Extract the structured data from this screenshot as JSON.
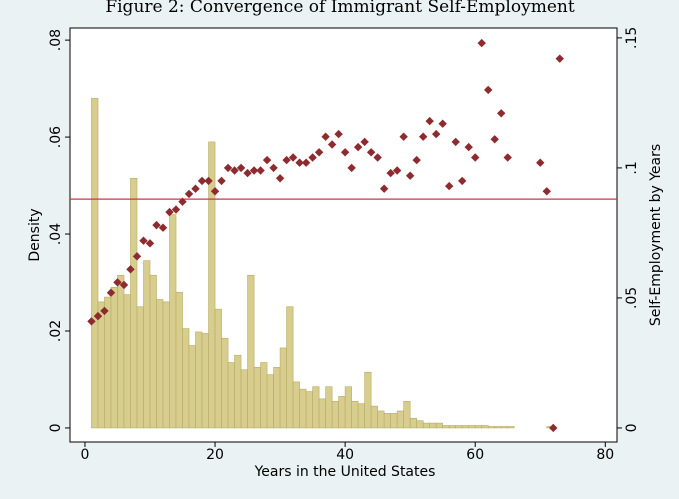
{
  "chart_data": {
    "type": "histogram",
    "title": "Figure 2: Convergence of Immigrant Self-Employment",
    "xlabel": "Years in the United States",
    "ylabel": "Density",
    "y2label": "Self-Employment by Years",
    "bins": [
      1,
      2,
      3,
      4,
      5,
      6,
      7,
      8,
      9,
      10,
      11,
      12,
      13,
      14,
      15,
      16,
      17,
      18,
      19,
      20,
      21,
      22,
      23,
      24,
      25,
      26,
      27,
      28,
      29,
      30,
      31,
      32,
      33,
      34,
      35,
      36,
      37,
      38,
      39,
      40,
      41,
      42,
      43,
      44,
      45,
      46,
      47,
      48,
      49,
      50,
      51,
      52,
      53,
      54,
      55,
      56,
      57,
      58,
      59,
      60,
      61,
      62,
      63,
      64,
      65,
      66,
      67,
      68,
      69,
      70,
      71,
      72,
      73
    ],
    "values": [
      0.068,
      0.026,
      0.027,
      0.029,
      0.0315,
      0.0275,
      0.0515,
      0.025,
      0.0345,
      0.0315,
      0.0265,
      0.026,
      0.044,
      0.028,
      0.0205,
      0.017,
      0.0198,
      0.0195,
      0.059,
      0.0245,
      0.0185,
      0.0135,
      0.015,
      0.012,
      0.0315,
      0.0125,
      0.0135,
      0.011,
      0.0125,
      0.0165,
      0.025,
      0.0095,
      0.008,
      0.0075,
      0.0085,
      0.006,
      0.0085,
      0.0055,
      0.0065,
      0.0085,
      0.0055,
      0.005,
      0.0115,
      0.0045,
      0.0035,
      0.003,
      0.003,
      0.0035,
      0.0055,
      0.002,
      0.0015,
      0.001,
      0.001,
      0.001,
      0.0005,
      0.0005,
      0.0005,
      0.0005,
      0.0005,
      0.0005,
      0.0005,
      0.0003,
      0.0003,
      0.0003,
      0.0003,
      0,
      0,
      0,
      0,
      0,
      0.0003,
      0
    ],
    "color": "#d7cd8e",
    "overlay": {
      "type": "scatter",
      "axis": "y2",
      "color": "#8e2b2f",
      "x": [
        1,
        2,
        3,
        4,
        5,
        6,
        7,
        8,
        9,
        10,
        11,
        12,
        13,
        14,
        15,
        16,
        17,
        18,
        19,
        20,
        21,
        22,
        23,
        24,
        25,
        26,
        27,
        28,
        29,
        30,
        31,
        32,
        33,
        34,
        35,
        36,
        37,
        38,
        39,
        40,
        41,
        42,
        43,
        44,
        45,
        46,
        47,
        48,
        49,
        50,
        51,
        52,
        53,
        54,
        55,
        56,
        57,
        58,
        59,
        60,
        61,
        62,
        63,
        64,
        65,
        70,
        71,
        72,
        73
      ],
      "values": [
        0.041,
        0.043,
        0.045,
        0.052,
        0.056,
        0.055,
        0.061,
        0.066,
        0.072,
        0.071,
        0.078,
        0.077,
        0.083,
        0.084,
        0.087,
        0.09,
        0.092,
        0.095,
        0.095,
        0.091,
        0.095,
        0.1,
        0.099,
        0.1,
        0.098,
        0.099,
        0.099,
        0.103,
        0.1,
        0.096,
        0.103,
        0.104,
        0.102,
        0.102,
        0.104,
        0.106,
        0.112,
        0.109,
        0.113,
        0.106,
        0.1,
        0.108,
        0.11,
        0.106,
        0.104,
        0.092,
        0.098,
        0.099,
        0.112,
        0.097,
        0.103,
        0.112,
        0.118,
        0.113,
        0.117,
        0.093,
        0.11,
        0.095,
        0.108,
        0.104,
        0.148,
        0.13,
        0.111,
        0.121,
        0.104,
        0.102,
        0.091,
        0,
        0.142
      ]
    },
    "hline": {
      "value": 0.088,
      "axis": "y2",
      "color": "#d5304c"
    },
    "xlim": [
      -2.3,
      81.8
    ],
    "ylim": [
      -0.0029,
      0.0825
    ],
    "y2lim": [
      -0.0054,
      0.1538
    ],
    "xticks": [
      0,
      20,
      40,
      60,
      80
    ],
    "yticks": [
      0,
      {
        "value": 0.02,
        "label": ".02"
      },
      {
        "value": 0.04,
        "label": ".04"
      },
      {
        "value": 0.06,
        "label": ".06"
      },
      {
        "value": 0.08,
        "label": ".08"
      }
    ],
    "y2ticks": [
      0,
      {
        "value": 0.05,
        "label": ".05"
      },
      {
        "value": 0.1,
        "label": ".1"
      },
      {
        "value": 0.15,
        "label": ".15"
      }
    ]
  }
}
